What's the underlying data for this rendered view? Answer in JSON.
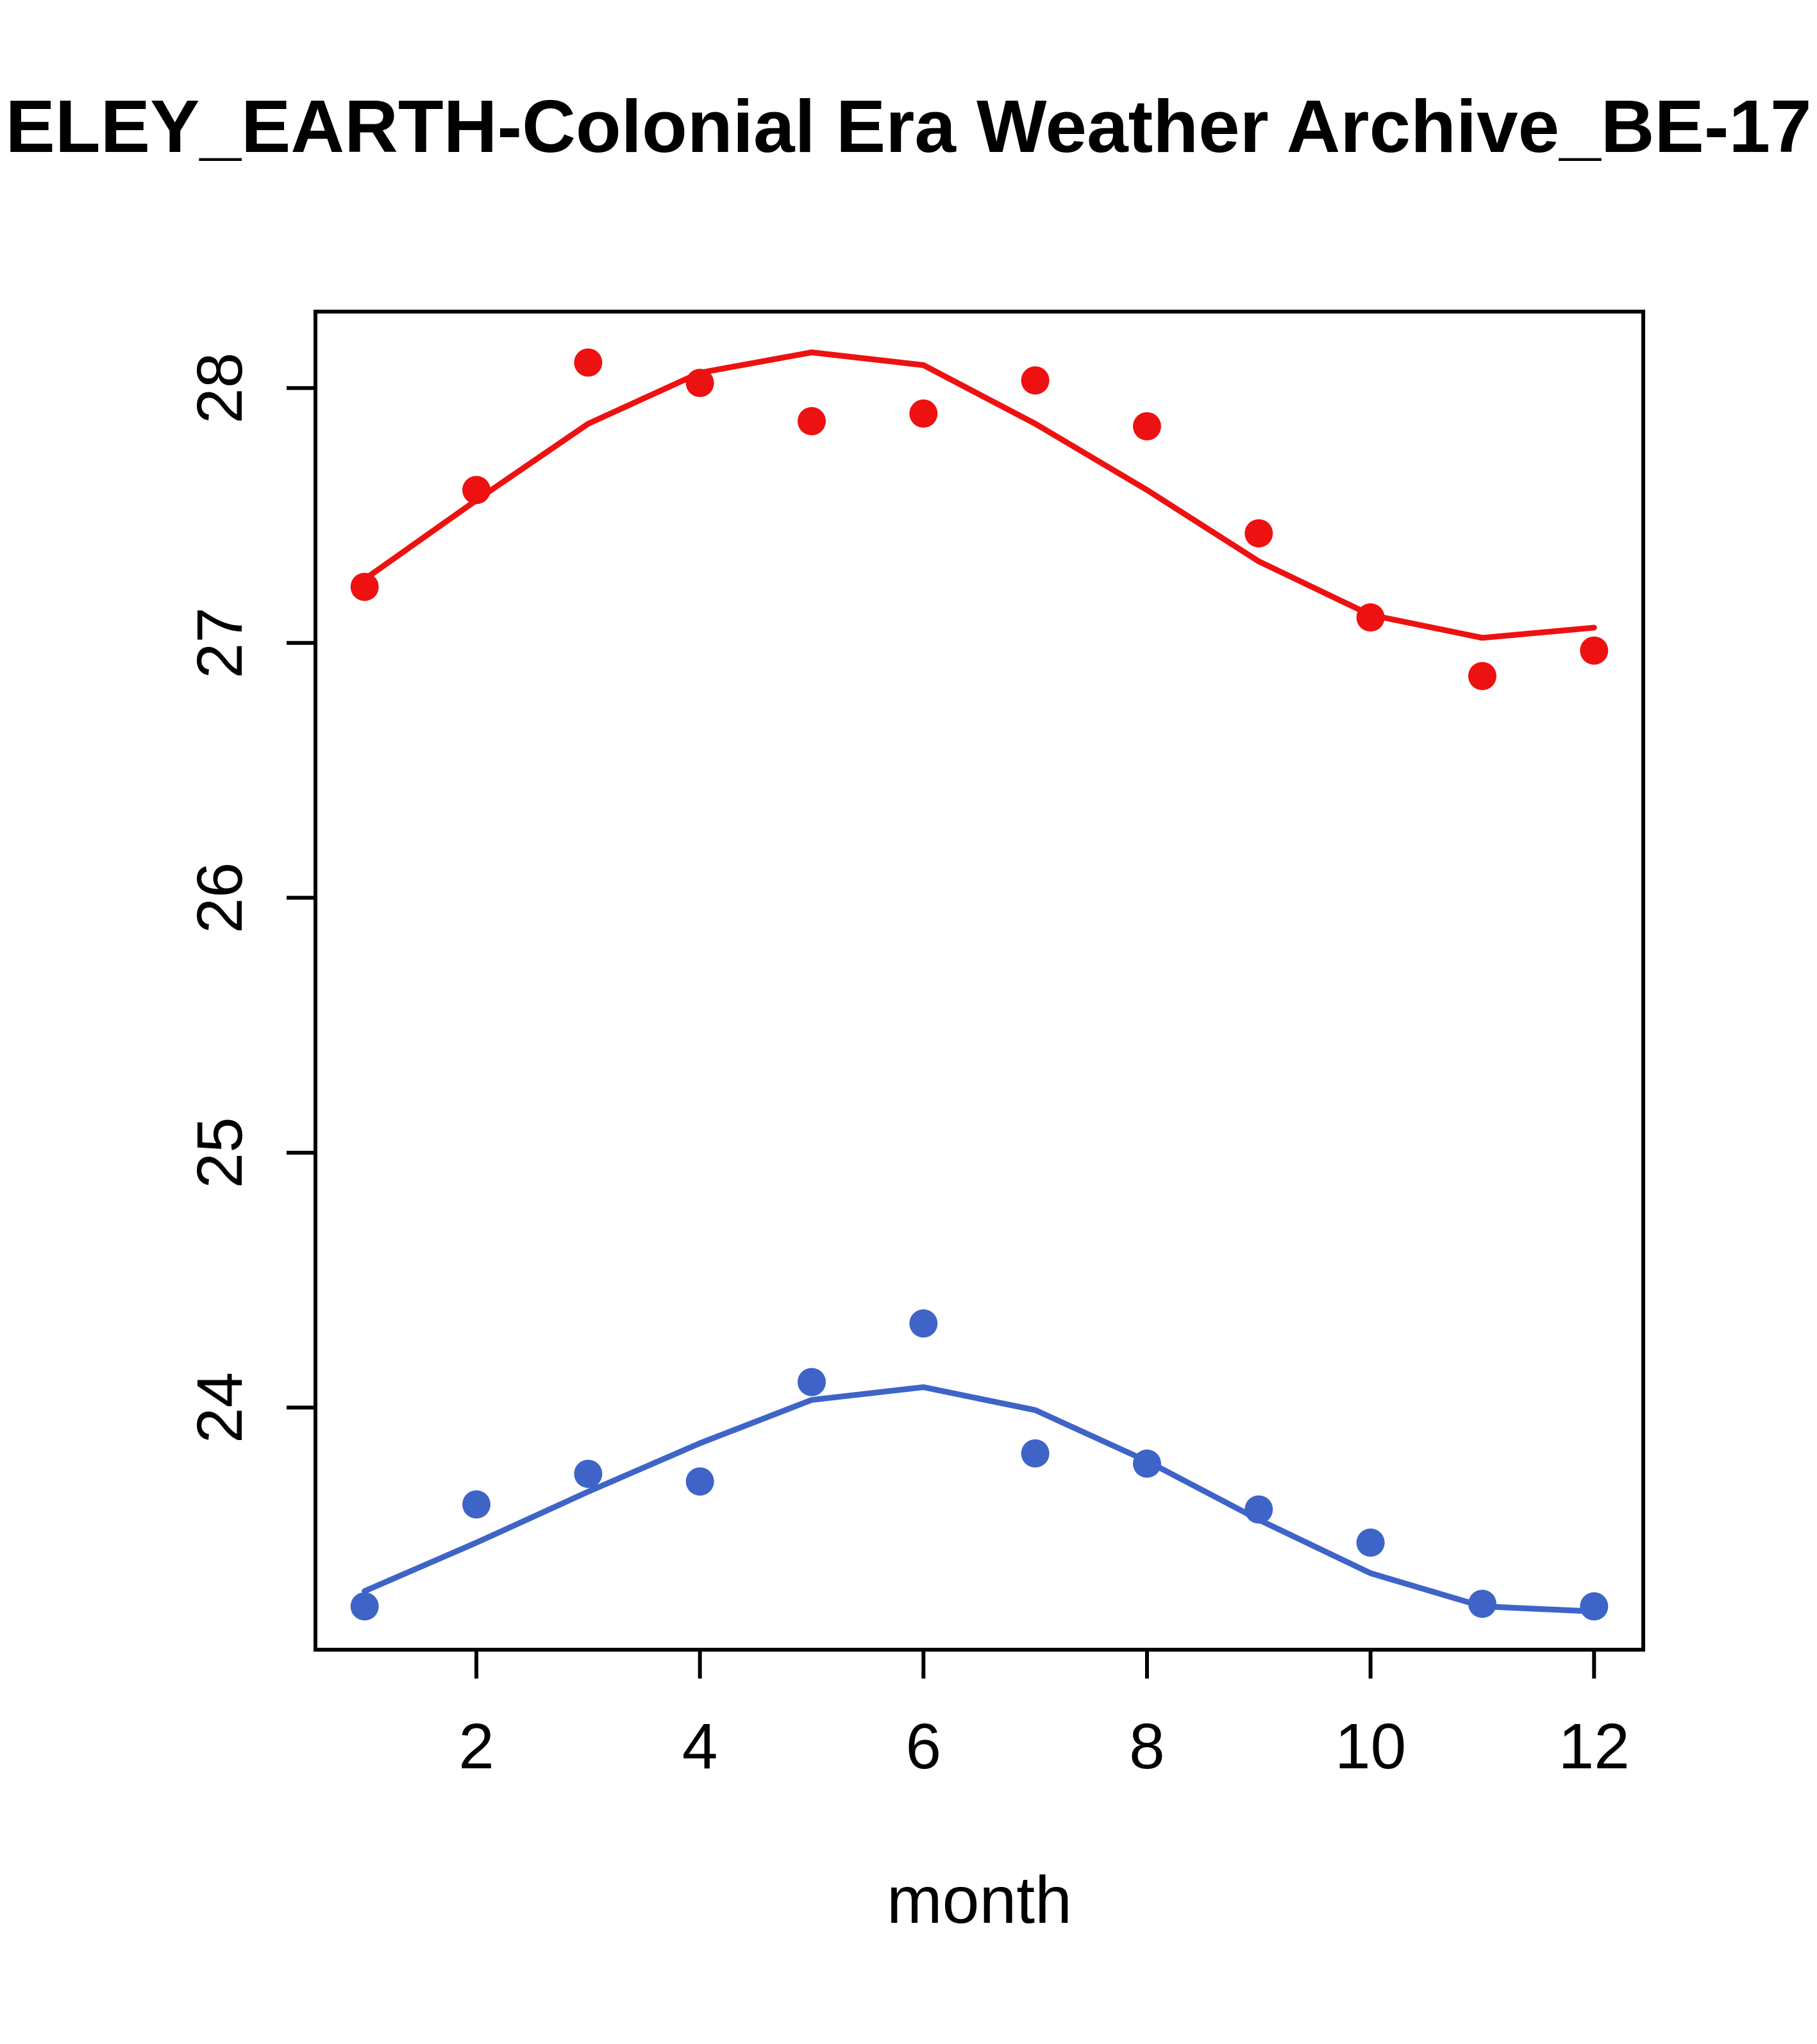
{
  "chart_data": {
    "type": "scatter",
    "title": "ELEY_EARTH-Colonial Era Weather Archive_BE-17",
    "xlabel": "month",
    "ylabel": "",
    "x": [
      1,
      2,
      3,
      4,
      5,
      6,
      7,
      8,
      9,
      10,
      11,
      12
    ],
    "xlim": [
      0.56,
      12.44
    ],
    "ylim": [
      23.05,
      28.3
    ],
    "x_ticks": [
      2,
      4,
      6,
      8,
      10,
      12
    ],
    "y_ticks": [
      24,
      25,
      26,
      27,
      28
    ],
    "colors": {
      "series_red": "#ee1111",
      "series_blue": "#3e64c8",
      "axis": "#000000"
    },
    "grid": false,
    "legend": "none",
    "series": [
      {
        "name": "red-points",
        "kind": "points",
        "color": "#ee1111",
        "values": [
          27.22,
          27.6,
          28.1,
          28.02,
          27.87,
          27.9,
          28.03,
          27.85,
          27.43,
          27.1,
          26.87,
          26.97
        ]
      },
      {
        "name": "red-smooth-line",
        "kind": "line",
        "color": "#ee1111",
        "values": [
          27.25,
          27.56,
          27.86,
          28.06,
          28.14,
          28.09,
          27.86,
          27.6,
          27.32,
          27.11,
          27.02,
          27.06
        ]
      },
      {
        "name": "blue-points",
        "kind": "points",
        "color": "#3e64c8",
        "values": [
          23.22,
          23.62,
          23.74,
          23.71,
          24.1,
          24.33,
          23.82,
          23.78,
          23.6,
          23.47,
          23.23,
          23.22
        ]
      },
      {
        "name": "blue-smooth-line",
        "kind": "line",
        "color": "#3e64c8",
        "values": [
          23.28,
          23.47,
          23.67,
          23.86,
          24.03,
          24.08,
          23.99,
          23.79,
          23.56,
          23.35,
          23.22,
          23.2
        ]
      }
    ]
  }
}
